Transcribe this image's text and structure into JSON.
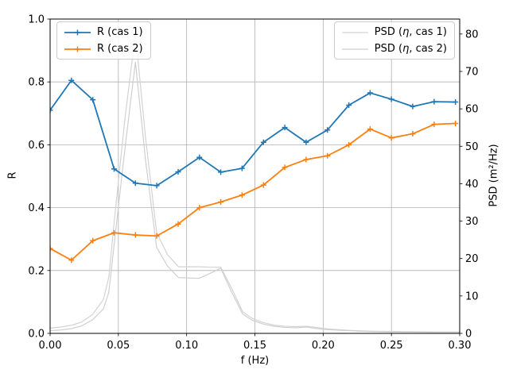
{
  "chart_data": {
    "type": "line",
    "title": "",
    "xlabel": "f (Hz)",
    "left_ylabel": "R",
    "right_ylabel": "PSD (m²/Hz)",
    "xlim": [
      0,
      0.3
    ],
    "left_ylim": [
      0,
      1.0
    ],
    "right_ylim": [
      0,
      84
    ],
    "grid": true,
    "colors": {
      "blue": "#1f77b4",
      "orange": "#ff7f0e",
      "psd_gray_1": "#d3d3d3",
      "psd_gray_2": "#cfcfcf",
      "grid": "#b0b0b0",
      "spine": "#000000"
    },
    "xticks": {
      "values": [
        0,
        0.05,
        0.1,
        0.15,
        0.2,
        0.25,
        0.3
      ],
      "labels": [
        "0.00",
        "0.05",
        "0.10",
        "0.15",
        "0.20",
        "0.25",
        "0.30"
      ]
    },
    "left_yticks": {
      "values": [
        0,
        0.2,
        0.4,
        0.6,
        0.8,
        1.0
      ],
      "labels": [
        "0.0",
        "0.2",
        "0.4",
        "0.6",
        "0.8",
        "1.0"
      ]
    },
    "right_yticks": {
      "values": [
        0,
        10,
        20,
        30,
        40,
        50,
        60,
        70,
        80
      ],
      "labels": [
        "0",
        "10",
        "20",
        "30",
        "40",
        "50",
        "60",
        "70",
        "80"
      ]
    },
    "series": [
      {
        "name": "R (cas 1)",
        "axis": "left",
        "color": "#1f77b4",
        "marker": "plus",
        "linewidth": 1.8,
        "x": [
          0.0,
          0.0156,
          0.0313,
          0.0469,
          0.0625,
          0.0781,
          0.0938,
          0.1094,
          0.125,
          0.1406,
          0.1563,
          0.1719,
          0.1875,
          0.2031,
          0.2188,
          0.2344,
          0.25,
          0.2656,
          0.2813,
          0.2969
        ],
        "y": [
          0.71,
          0.805,
          0.743,
          0.523,
          0.478,
          0.47,
          0.514,
          0.56,
          0.513,
          0.525,
          0.608,
          0.655,
          0.608,
          0.647,
          0.726,
          0.765,
          0.745,
          0.722,
          0.737,
          0.736
        ]
      },
      {
        "name": "R (cas 2)",
        "axis": "left",
        "color": "#ff7f0e",
        "marker": "plus",
        "linewidth": 1.8,
        "x": [
          0.0,
          0.0156,
          0.0313,
          0.0469,
          0.0625,
          0.0781,
          0.0938,
          0.1094,
          0.125,
          0.1406,
          0.1563,
          0.1719,
          0.1875,
          0.2031,
          0.2188,
          0.2344,
          0.25,
          0.2656,
          0.2813,
          0.2969
        ],
        "y": [
          0.27,
          0.233,
          0.295,
          0.32,
          0.313,
          0.31,
          0.348,
          0.4,
          0.418,
          0.44,
          0.472,
          0.528,
          0.553,
          0.565,
          0.6,
          0.65,
          0.622,
          0.635,
          0.665,
          0.668
        ]
      },
      {
        "name": "PSD (η, cas 1)",
        "axis": "right",
        "color": "#d3d3d3",
        "marker": "none",
        "linewidth": 1.2,
        "x": [
          0.0,
          0.008,
          0.016,
          0.023,
          0.031,
          0.039,
          0.043,
          0.047,
          0.055,
          0.0625,
          0.07,
          0.078,
          0.086,
          0.094,
          0.109,
          0.117,
          0.125,
          0.133,
          0.141,
          0.148,
          0.156,
          0.164,
          0.172,
          0.18,
          0.188,
          0.195,
          0.203,
          0.219,
          0.234,
          0.25,
          0.266,
          0.281,
          0.3
        ],
        "y": [
          1.4,
          1.7,
          2.2,
          3.0,
          5.0,
          9.0,
          15,
          30,
          58,
          80,
          52,
          27,
          21,
          17.8,
          17.8,
          17.7,
          17.7,
          12,
          5.8,
          4.0,
          2.9,
          2.2,
          1.9,
          1.8,
          1.9,
          1.6,
          1.2,
          0.8,
          0.6,
          0.5,
          0.45,
          0.4,
          0.4
        ]
      },
      {
        "name": "PSD (η, cas 2)",
        "axis": "right",
        "color": "#cfcfcf",
        "marker": "none",
        "linewidth": 1.2,
        "x": [
          0.0,
          0.008,
          0.016,
          0.023,
          0.031,
          0.039,
          0.043,
          0.047,
          0.055,
          0.0625,
          0.07,
          0.078,
          0.086,
          0.094,
          0.109,
          0.117,
          0.125,
          0.133,
          0.141,
          0.148,
          0.156,
          0.164,
          0.172,
          0.18,
          0.188,
          0.195,
          0.203,
          0.219,
          0.234,
          0.25,
          0.266,
          0.281,
          0.3
        ],
        "y": [
          0.7,
          0.9,
          1.3,
          2.0,
          3.6,
          6.5,
          11,
          24,
          50,
          72.5,
          46,
          23,
          18,
          14.9,
          14.7,
          16.0,
          17.4,
          11,
          5.2,
          3.5,
          2.5,
          1.9,
          1.6,
          1.5,
          1.7,
          1.3,
          1.0,
          0.7,
          0.5,
          0.4,
          0.35,
          0.3,
          0.3
        ]
      }
    ],
    "legends": [
      {
        "id": "legend-r",
        "position": "upper-left",
        "entries": [
          0,
          1
        ]
      },
      {
        "id": "legend-psd",
        "position": "upper-right",
        "entries": [
          2,
          3
        ]
      }
    ]
  }
}
